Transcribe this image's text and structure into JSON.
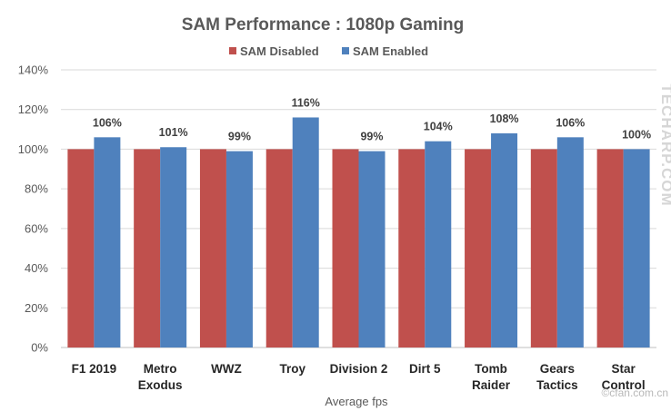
{
  "chart_data": {
    "type": "bar",
    "title": "SAM Performance : 1080p Gaming",
    "xlabel": "Average fps",
    "ylabel": "",
    "ylim": [
      0,
      140
    ],
    "yticks": [
      "0%",
      "20%",
      "40%",
      "60%",
      "80%",
      "100%",
      "120%",
      "140%"
    ],
    "ytick_values": [
      0,
      20,
      40,
      60,
      80,
      100,
      120,
      140
    ],
    "grid": true,
    "legend_position": "top-center",
    "categories": [
      [
        "F1 2019"
      ],
      [
        "Metro",
        "Exodus"
      ],
      [
        "WWZ"
      ],
      [
        "Troy"
      ],
      [
        "Division 2"
      ],
      [
        "Dirt 5"
      ],
      [
        "Tomb",
        "Raider"
      ],
      [
        "Gears",
        "Tactics"
      ],
      [
        "Star",
        "Control"
      ]
    ],
    "series": [
      {
        "name": "SAM Disabled",
        "color": "#c0504d",
        "values": [
          100,
          100,
          100,
          100,
          100,
          100,
          100,
          100,
          100
        ],
        "labels": []
      },
      {
        "name": "SAM Enabled",
        "color": "#4f81bd",
        "values": [
          106,
          101,
          99,
          116,
          99,
          104,
          108,
          106,
          100
        ],
        "labels": [
          "106%",
          "101%",
          "99%",
          "116%",
          "99%",
          "104%",
          "108%",
          "106%",
          "100%"
        ]
      }
    ]
  },
  "watermarks": {
    "vertical": "TECHARP.COM",
    "corner": "©cfan.com.cn"
  }
}
